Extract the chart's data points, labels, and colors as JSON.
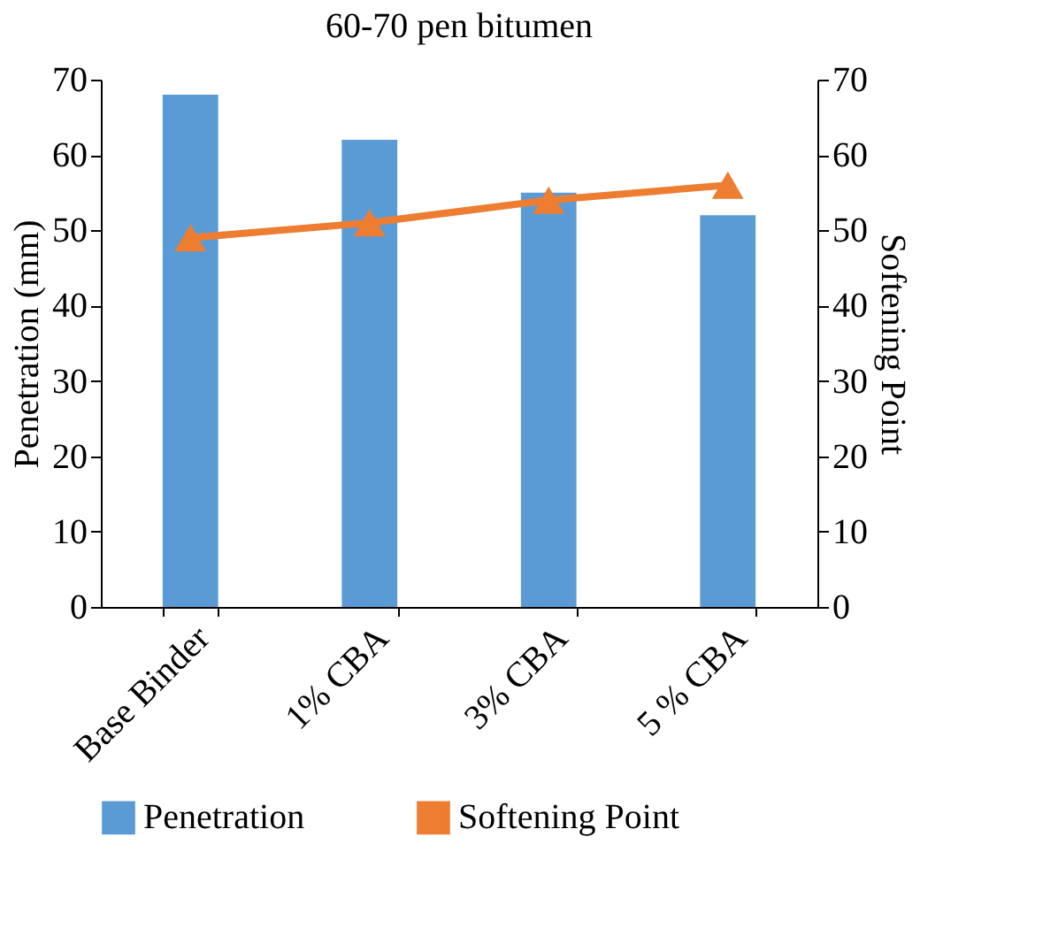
{
  "chart_data": {
    "type": "bar",
    "title": "60-70 pen bitumen",
    "ylabel": "Penetration (mm)",
    "y2label": "Softening Point",
    "categories": [
      "Base Binder",
      "1% CBA",
      "3% CBA",
      "5 % CBA"
    ],
    "series": [
      {
        "name": "Penetration",
        "color": "#5b9bd5",
        "values": [
          68,
          62,
          55,
          52
        ]
      },
      {
        "name": "Softening Point",
        "type": "line",
        "axis": "y2",
        "color": "#ed7d31",
        "marker": "triangle",
        "values": [
          49,
          51,
          54,
          56
        ]
      }
    ],
    "ylim": [
      0,
      70
    ],
    "yticks": [
      0,
      10,
      20,
      30,
      40,
      50,
      60,
      70
    ],
    "y2lim": [
      0,
      70
    ],
    "y2ticks": [
      0,
      10,
      20,
      30,
      40,
      50,
      60,
      70
    ],
    "legend": "bottom",
    "grid": false
  }
}
